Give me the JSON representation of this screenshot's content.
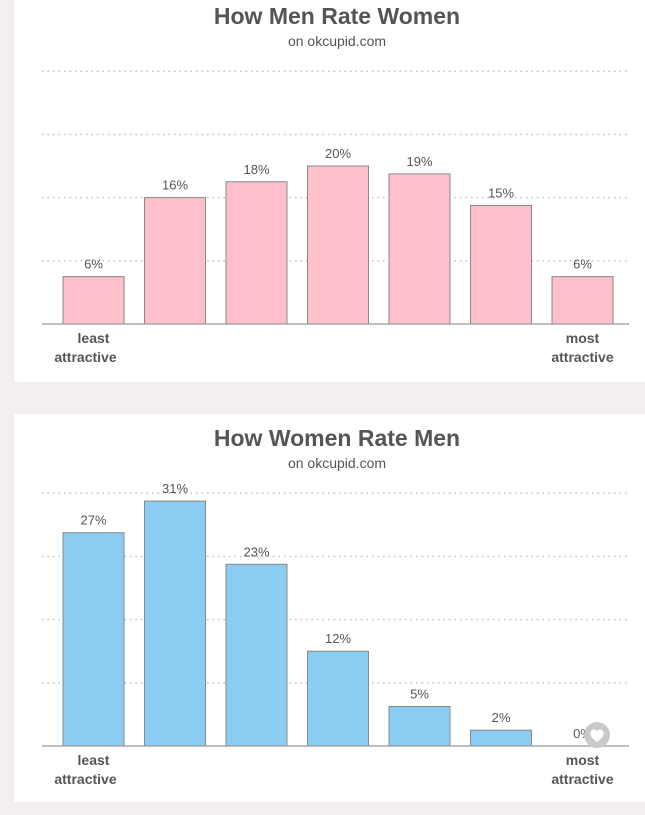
{
  "colors": {
    "background": "#f3eef2",
    "text": "#555555",
    "axis": "#999999",
    "grid": "#bbbbbb",
    "bar_outline": "#888888",
    "pink": "#ffc0cc",
    "blue": "#8bcdf2"
  },
  "chart_data": [
    {
      "type": "bar",
      "title": "How Men Rate Women",
      "subtitle": "on okcupid.com",
      "categories": [
        "",
        "",
        "",
        "",
        "",
        "",
        ""
      ],
      "values": [
        6,
        16,
        18,
        20,
        19,
        15,
        6
      ],
      "value_labels": [
        "6%",
        "16%",
        "18%",
        "20%",
        "19%",
        "15%",
        "6%"
      ],
      "start_label": [
        "least",
        "attractive"
      ],
      "end_label": [
        "most",
        "attractive"
      ],
      "bar_color": "#ffc0cc",
      "ylim": [
        0,
        32
      ],
      "grid": true,
      "gridlines": [
        8,
        16,
        24,
        32
      ]
    },
    {
      "type": "bar",
      "title": "How Women Rate Men",
      "subtitle": "on okcupid.com",
      "categories": [
        "",
        "",
        "",
        "",
        "",
        "",
        ""
      ],
      "values": [
        27,
        31,
        23,
        12,
        5,
        2,
        0
      ],
      "value_labels": [
        "27%",
        "31%",
        "23%",
        "12%",
        "5%",
        "2%",
        "0%"
      ],
      "start_label": [
        "least",
        "attractive"
      ],
      "end_label": [
        "most",
        "attractive"
      ],
      "bar_color": "#8bcdf2",
      "ylim": [
        0,
        32
      ],
      "grid": true,
      "gridlines": [
        8,
        16,
        24,
        32
      ]
    }
  ],
  "overlay": {
    "icon": "heart-icon"
  }
}
